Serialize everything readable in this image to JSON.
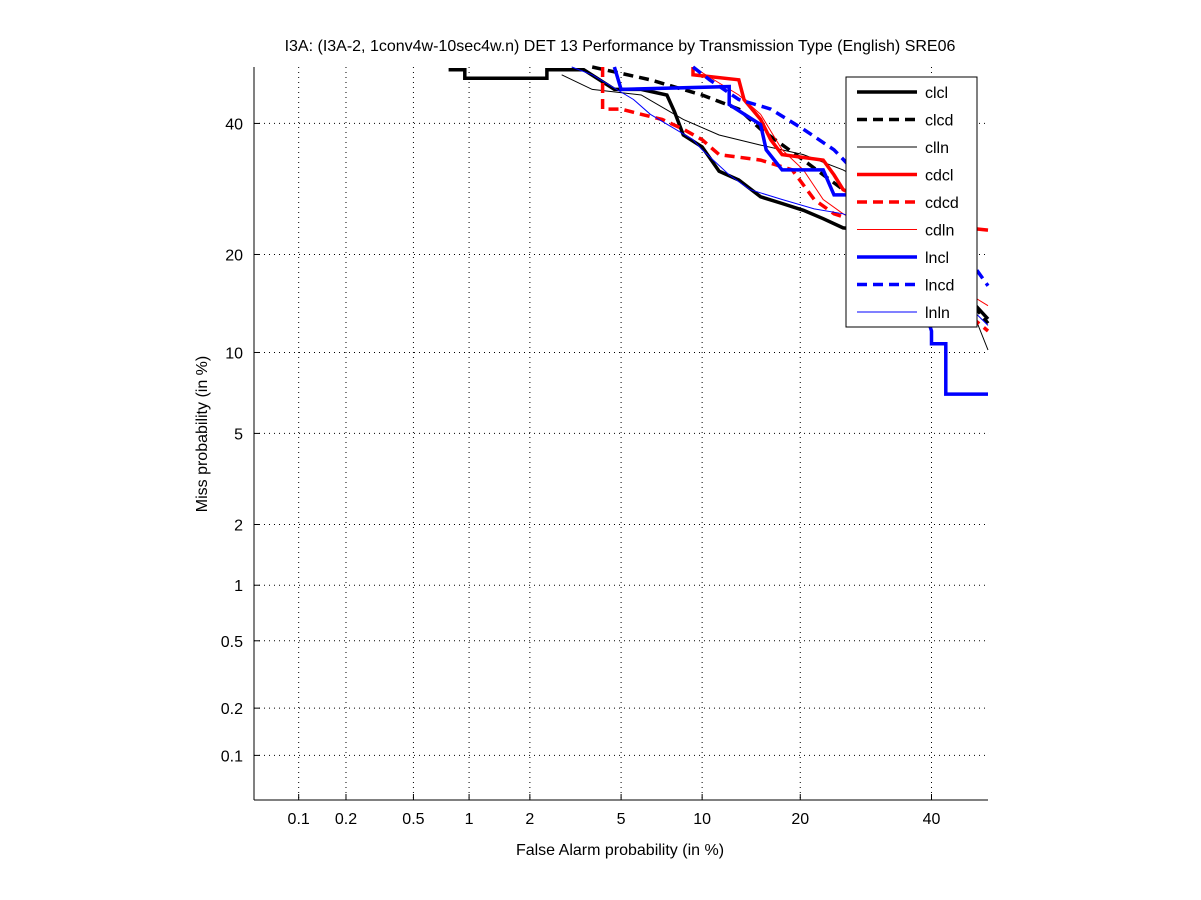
{
  "chart_data": {
    "type": "line",
    "title": "I3A: (I3A-2, 1conv4w-10sec4w.n) DET 13 Performance by Transmission Type (English) SRE06",
    "xlabel": "False Alarm probability (in %)",
    "ylabel": "Miss probability (in %)",
    "scale": "normal-deviate (DET)",
    "xlim": [
      0.05,
      50
    ],
    "ylim": [
      0.05,
      50
    ],
    "xticks": [
      0.1,
      0.2,
      0.5,
      1,
      2,
      5,
      10,
      20,
      40
    ],
    "xtick_labels": [
      "0.1",
      "0.2",
      "0.5",
      "1",
      "2",
      "5",
      "10",
      "20",
      "40"
    ],
    "yticks": [
      0.1,
      0.2,
      0.5,
      1,
      2,
      5,
      10,
      20,
      40
    ],
    "ytick_labels": [
      "0.1",
      "0.2",
      "0.5",
      "1",
      "2",
      "5",
      "10",
      "20",
      "40"
    ],
    "grid": true,
    "legend_position": "top-right",
    "series": [
      {
        "name": "clcl",
        "color": "#000000",
        "style": "solid",
        "weight": "thick",
        "points": [
          [
            0.78,
            49.5
          ],
          [
            0.95,
            49.5
          ],
          [
            0.95,
            48
          ],
          [
            2.4,
            48
          ],
          [
            2.4,
            49.5
          ],
          [
            3.5,
            49.5
          ],
          [
            4.7,
            46
          ],
          [
            6,
            46
          ],
          [
            7.5,
            45
          ],
          [
            8,
            42
          ],
          [
            8.6,
            38
          ],
          [
            10,
            36
          ],
          [
            11.4,
            32
          ],
          [
            13.2,
            30.6
          ],
          [
            15.4,
            28
          ],
          [
            17.8,
            27
          ],
          [
            20.4,
            26
          ],
          [
            23,
            24.8
          ],
          [
            25.8,
            23.5
          ],
          [
            30,
            23.2
          ],
          [
            40,
            21
          ],
          [
            45,
            16
          ],
          [
            50,
            12.9
          ]
        ]
      },
      {
        "name": "clcd",
        "color": "#000000",
        "style": "dashed",
        "weight": "thick",
        "points": [
          [
            3.8,
            50
          ],
          [
            6.5,
            47.7
          ],
          [
            10,
            45
          ],
          [
            13.2,
            42.5
          ],
          [
            15.4,
            39
          ],
          [
            20.4,
            33.8
          ],
          [
            25.8,
            29.1
          ],
          [
            30,
            27.6
          ],
          [
            35,
            25
          ],
          [
            45,
            16
          ],
          [
            50,
            12.5
          ]
        ]
      },
      {
        "name": "clln",
        "color": "#000000",
        "style": "solid",
        "weight": "thin",
        "points": [
          [
            2.8,
            48.6
          ],
          [
            3.8,
            46
          ],
          [
            6,
            45
          ],
          [
            8.6,
            40.7
          ],
          [
            11.4,
            38
          ],
          [
            15.4,
            36.3
          ],
          [
            20.4,
            34.7
          ],
          [
            25.8,
            32.2
          ],
          [
            28.5,
            30.6
          ],
          [
            40,
            22
          ],
          [
            47,
            14
          ],
          [
            50,
            10.2
          ]
        ]
      },
      {
        "name": "cdcl",
        "color": "#ff0000",
        "style": "solid",
        "weight": "thick",
        "points": [
          [
            9.3,
            50
          ],
          [
            9.3,
            48.6
          ],
          [
            13.2,
            47.7
          ],
          [
            13.7,
            44.2
          ],
          [
            15.4,
            40.7
          ],
          [
            16.5,
            37.2
          ],
          [
            17.8,
            34.7
          ],
          [
            23,
            33.8
          ],
          [
            24.5,
            31.4
          ],
          [
            25.8,
            29.1
          ],
          [
            30,
            27
          ],
          [
            40,
            24
          ],
          [
            50,
            23.2
          ]
        ]
      },
      {
        "name": "cdcd",
        "color": "#ff0000",
        "style": "dashed",
        "weight": "thick",
        "points": [
          [
            4.2,
            50
          ],
          [
            4.2,
            42.5
          ],
          [
            5,
            42.5
          ],
          [
            6,
            41.6
          ],
          [
            7.2,
            40.7
          ],
          [
            8.6,
            39
          ],
          [
            10,
            37.2
          ],
          [
            11.4,
            34.7
          ],
          [
            15.4,
            33.8
          ],
          [
            19,
            32.2
          ],
          [
            21.8,
            27.6
          ],
          [
            24.5,
            25.5
          ],
          [
            26.6,
            24.8
          ],
          [
            35,
            20
          ],
          [
            45,
            14
          ],
          [
            50,
            11.8
          ]
        ]
      },
      {
        "name": "cdln",
        "color": "#ff0000",
        "style": "solid",
        "weight": "thin",
        "points": [
          [
            9.3,
            50
          ],
          [
            13.2,
            45
          ],
          [
            15.4,
            41.6
          ],
          [
            17.8,
            35.5
          ],
          [
            20.4,
            32.2
          ],
          [
            23,
            27.6
          ],
          [
            25.8,
            25.5
          ],
          [
            35,
            21
          ],
          [
            45,
            16
          ],
          [
            50,
            14.2
          ]
        ]
      },
      {
        "name": "lncl",
        "color": "#0000ff",
        "style": "solid",
        "weight": "thick",
        "points": [
          [
            4.7,
            50
          ],
          [
            5,
            46
          ],
          [
            12.3,
            46.5
          ],
          [
            12.3,
            43.3
          ],
          [
            15.4,
            39.8
          ],
          [
            16,
            35.5
          ],
          [
            17.8,
            32.2
          ],
          [
            23,
            32.2
          ],
          [
            24.5,
            28.3
          ],
          [
            26.6,
            28.3
          ],
          [
            35,
            22
          ],
          [
            40,
            11.8
          ],
          [
            40,
            10.7
          ],
          [
            42.5,
            10.7
          ],
          [
            42.5,
            7.1
          ],
          [
            50,
            7.1
          ]
        ]
      },
      {
        "name": "lncd",
        "color": "#0000ff",
        "style": "dashed",
        "weight": "thick",
        "points": [
          [
            9.3,
            50
          ],
          [
            10.6,
            47.7
          ],
          [
            13.2,
            44.2
          ],
          [
            16.5,
            42.5
          ],
          [
            20.4,
            39
          ],
          [
            24.5,
            35.5
          ],
          [
            26.6,
            33
          ],
          [
            35,
            27
          ],
          [
            45,
            20
          ],
          [
            48,
            18.1
          ],
          [
            50,
            16.3
          ]
        ]
      },
      {
        "name": "lnln",
        "color": "#0000ff",
        "style": "solid",
        "weight": "thin",
        "points": [
          [
            3.1,
            50
          ],
          [
            3.8,
            48.6
          ],
          [
            5.6,
            44.2
          ],
          [
            6.5,
            41.6
          ],
          [
            9.3,
            37.2
          ],
          [
            10,
            35.5
          ],
          [
            12.3,
            31.4
          ],
          [
            14.3,
            29.1
          ],
          [
            17.8,
            27.6
          ],
          [
            21.8,
            26.2
          ],
          [
            25.8,
            25.5
          ],
          [
            35,
            22
          ],
          [
            45,
            15
          ],
          [
            50,
            12.3
          ]
        ]
      }
    ]
  }
}
